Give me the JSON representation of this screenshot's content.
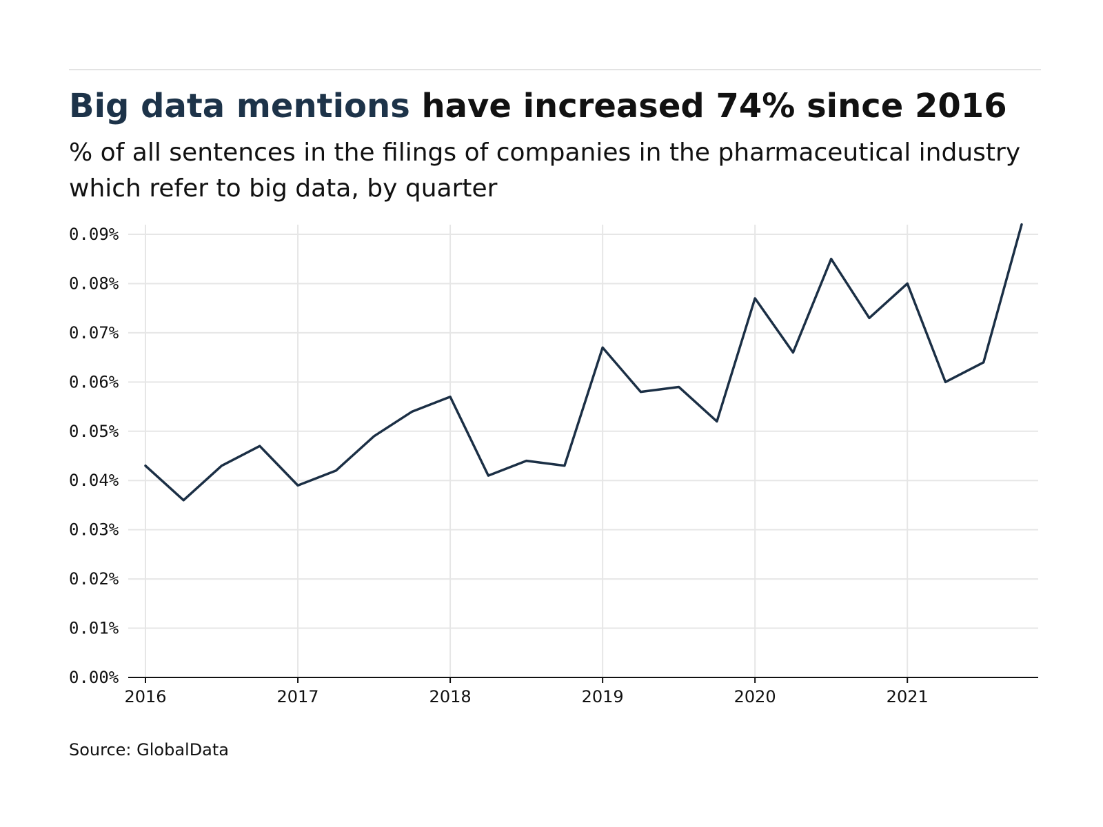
{
  "header": {
    "title_accent": "Big data mentions",
    "title_rest": " have increased 74% since 2016",
    "subtitle": "% of all sentences in the filings of companies in the pharmaceutical industry which refer to big data, by quarter"
  },
  "footer": {
    "source": "Source: GlobalData"
  },
  "colors": {
    "line": "#1b2f45",
    "grid": "#e6e6e6",
    "axis": "#111111",
    "accent_title": "#1d3349"
  },
  "chart_data": {
    "type": "line",
    "title": "Big data mentions have increased 74% since 2016",
    "xlabel": "",
    "ylabel": "",
    "ylim": [
      0,
      0.09
    ],
    "xlim": [
      2016,
      2021.75
    ],
    "grid": true,
    "y_ticks": [
      0,
      0.01,
      0.02,
      0.03,
      0.04,
      0.05,
      0.06,
      0.07,
      0.08,
      0.09
    ],
    "y_tick_labels": [
      "0.00%",
      "0.01%",
      "0.02%",
      "0.03%",
      "0.04%",
      "0.05%",
      "0.06%",
      "0.07%",
      "0.08%",
      "0.09%"
    ],
    "x_ticks": [
      2016,
      2017,
      2018,
      2019,
      2020,
      2021
    ],
    "x_tick_labels": [
      "2016",
      "2017",
      "2018",
      "2019",
      "2020",
      "2021"
    ],
    "series": [
      {
        "x": [
          2016,
          2016.25,
          2016.5,
          2016.75,
          2017,
          2017.25,
          2017.5,
          2017.75,
          2018,
          2018.25,
          2018.5,
          2018.75,
          2019,
          2019.25,
          2019.5,
          2019.75,
          2020,
          2020.25,
          2020.5,
          2020.75,
          2021,
          2021.25,
          2021.5,
          2021.75
        ],
        "values": [
          0.043,
          0.036,
          0.043,
          0.047,
          0.039,
          0.042,
          0.049,
          0.054,
          0.057,
          0.041,
          0.044,
          0.043,
          0.067,
          0.058,
          0.059,
          0.052,
          0.077,
          0.066,
          0.085,
          0.073,
          0.08,
          0.06,
          0.064,
          0.092
        ]
      }
    ]
  }
}
